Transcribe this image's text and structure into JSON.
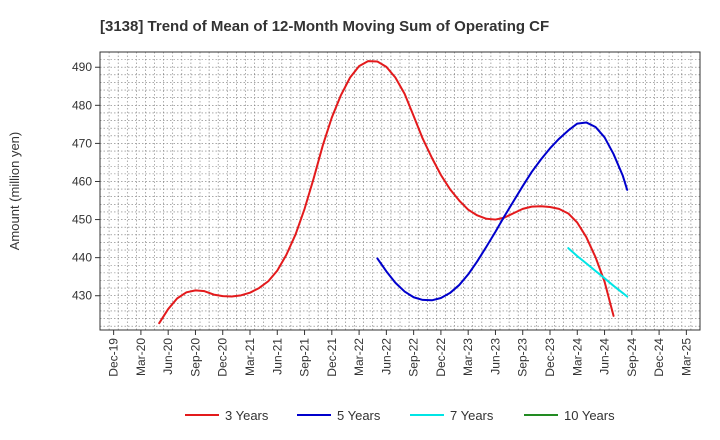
{
  "chart_data": {
    "type": "line",
    "title": "[3138]  Trend of Mean of 12-Month Moving Sum of Operating CF",
    "xlabel": "",
    "ylabel": "Amount (million yen)",
    "ylim": [
      421,
      494
    ],
    "yticks": [
      430,
      440,
      450,
      460,
      470,
      480,
      490
    ],
    "categories": [
      "Dec-19",
      "Mar-20",
      "Jun-20",
      "Sep-20",
      "Dec-20",
      "Mar-21",
      "Jun-21",
      "Sep-21",
      "Dec-21",
      "Mar-22",
      "Jun-22",
      "Sep-22",
      "Dec-22",
      "Mar-23",
      "Jun-23",
      "Sep-23",
      "Dec-23",
      "Mar-24",
      "Jun-24",
      "Sep-24",
      "Dec-24",
      "Mar-25"
    ],
    "grid": true,
    "legend_position": "bottom",
    "series": [
      {
        "name": "3 Years",
        "color": "#e31a1c",
        "points": [
          [
            1.67,
            422.8
          ],
          [
            2,
            426.5
          ],
          [
            2.33,
            429.3
          ],
          [
            2.67,
            430.9
          ],
          [
            3,
            431.4
          ],
          [
            3.33,
            431.2
          ],
          [
            3.67,
            430.3
          ],
          [
            4,
            429.9
          ],
          [
            4.33,
            429.8
          ],
          [
            4.67,
            430.1
          ],
          [
            5,
            430.8
          ],
          [
            5.33,
            432
          ],
          [
            5.67,
            433.8
          ],
          [
            6,
            436.6
          ],
          [
            6.33,
            440.7
          ],
          [
            6.67,
            446.1
          ],
          [
            7,
            452.8
          ],
          [
            7.33,
            460.7
          ],
          [
            7.67,
            469.5
          ],
          [
            8,
            476.8
          ],
          [
            8.33,
            482.6
          ],
          [
            8.67,
            487.3
          ],
          [
            9,
            490.3
          ],
          [
            9.33,
            491.6
          ],
          [
            9.67,
            491.5
          ],
          [
            10,
            490.1
          ],
          [
            10.33,
            487.3
          ],
          [
            10.67,
            483
          ],
          [
            11,
            477.2
          ],
          [
            11.33,
            471.3
          ],
          [
            11.67,
            466.2
          ],
          [
            12,
            461.7
          ],
          [
            12.33,
            458
          ],
          [
            12.67,
            455
          ],
          [
            13,
            452.6
          ],
          [
            13.33,
            451.1
          ],
          [
            13.67,
            450.2
          ],
          [
            14,
            450
          ],
          [
            14.33,
            450.5
          ],
          [
            14.67,
            451.7
          ],
          [
            15,
            452.8
          ],
          [
            15.33,
            453.4
          ],
          [
            15.67,
            453.5
          ],
          [
            16,
            453.3
          ],
          [
            16.33,
            452.8
          ],
          [
            16.67,
            451.6
          ],
          [
            17,
            449.2
          ],
          [
            17.33,
            445.4
          ],
          [
            17.67,
            440.1
          ],
          [
            18,
            433.7
          ],
          [
            18.33,
            424.7
          ]
        ]
      },
      {
        "name": "5 Years",
        "color": "#0000cc",
        "points": [
          [
            9.67,
            439.8
          ],
          [
            10,
            436.4
          ],
          [
            10.33,
            433.4
          ],
          [
            10.67,
            431.1
          ],
          [
            11,
            429.6
          ],
          [
            11.33,
            428.9
          ],
          [
            11.67,
            428.8
          ],
          [
            12,
            429.4
          ],
          [
            12.33,
            430.7
          ],
          [
            12.67,
            432.8
          ],
          [
            13,
            435.6
          ],
          [
            13.33,
            439
          ],
          [
            13.67,
            442.9
          ],
          [
            14,
            446.8
          ],
          [
            14.33,
            450.9
          ],
          [
            14.67,
            454.9
          ],
          [
            15,
            458.8
          ],
          [
            15.33,
            462.5
          ],
          [
            15.67,
            465.8
          ],
          [
            16,
            468.7
          ],
          [
            16.33,
            471.2
          ],
          [
            16.67,
            473.4
          ],
          [
            17,
            475.2
          ],
          [
            17.33,
            475.5
          ],
          [
            17.67,
            474.3
          ],
          [
            18,
            471.6
          ],
          [
            18.33,
            467.2
          ],
          [
            18.67,
            461.5
          ],
          [
            18.83,
            457.8
          ]
        ]
      },
      {
        "name": "7 Years",
        "color": "#00e5e5",
        "points": [
          [
            16.67,
            442.5
          ],
          [
            17,
            440.4
          ],
          [
            17.33,
            438.5
          ],
          [
            17.67,
            436.5
          ],
          [
            18,
            434.6
          ],
          [
            18.33,
            432.6
          ],
          [
            18.67,
            430.7
          ],
          [
            18.83,
            429.8
          ]
        ]
      },
      {
        "name": "10 Years",
        "color": "#228b22",
        "points": []
      }
    ]
  }
}
